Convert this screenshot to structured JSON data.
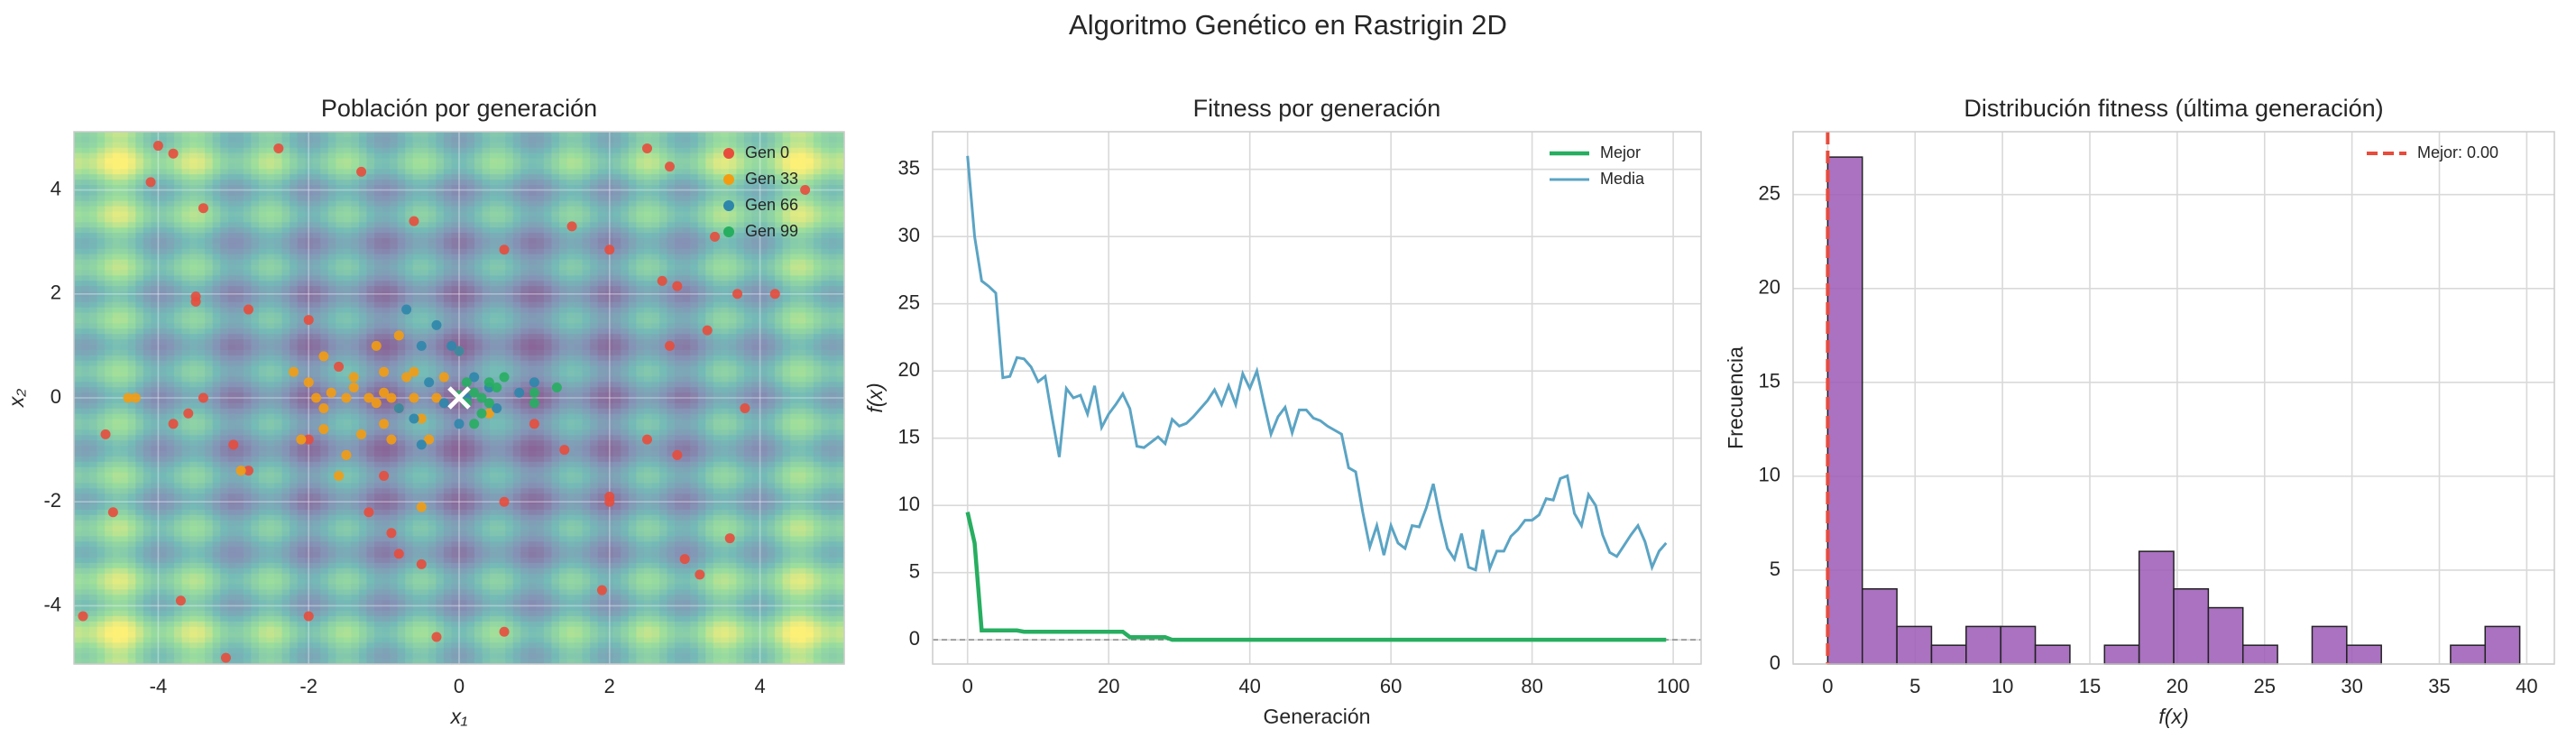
{
  "title": "Algoritmo Genético en Rastrigin 2D",
  "chart_data": [
    {
      "type": "scatter",
      "title": "Población por generación",
      "xlabel": "x₁",
      "ylabel": "x₂",
      "xlim": [
        -5.12,
        5.12
      ],
      "ylim": [
        -5.12,
        5.12
      ],
      "xticks": [
        -4,
        -2,
        0,
        2,
        4
      ],
      "yticks": [
        -4,
        -2,
        0,
        2,
        4
      ],
      "grid": true,
      "colormap": "viridis",
      "legend": "upper right",
      "series": [
        {
          "name": "Gen 0",
          "color": "#e74c3c",
          "x": [
            -4.0,
            -3.8,
            -2.4,
            -1.3,
            -4.1,
            -3.4,
            -0.6,
            2.5,
            2.8,
            1.5,
            0.6,
            3.4,
            3.7,
            4.2,
            2.7,
            2.9,
            2.0,
            -3.5,
            -3.5,
            -2.8,
            -2.0,
            -1.6,
            3.3,
            2.8,
            -3.6,
            -3.4,
            -4.7,
            -3.8,
            -3.0,
            -2.8,
            -2.0,
            -1.2,
            -1.0,
            0.6,
            1.4,
            2.0,
            2.0,
            2.5,
            2.9,
            3.0,
            3.2,
            3.6,
            -4.6,
            -3.7,
            -2.0,
            -0.9,
            -0.8,
            -0.5,
            1.9,
            0.6,
            -0.3,
            -3.1,
            -5.0,
            1.0,
            3.8,
            4.6
          ],
          "y": [
            4.85,
            4.7,
            4.8,
            4.35,
            4.15,
            3.65,
            3.4,
            4.8,
            4.45,
            3.3,
            2.85,
            3.1,
            2.0,
            2.0,
            2.25,
            2.15,
            2.85,
            1.95,
            1.85,
            1.7,
            1.5,
            0.6,
            1.3,
            1.0,
            -0.3,
            0.0,
            -0.7,
            -0.5,
            -0.9,
            -1.4,
            -0.8,
            -2.2,
            -1.5,
            -2.0,
            -1.0,
            -1.9,
            -2.0,
            -0.8,
            -1.1,
            -3.1,
            -3.4,
            -2.7,
            -2.2,
            -3.9,
            -4.2,
            -2.6,
            -3.0,
            -3.2,
            -3.7,
            -4.5,
            -4.6,
            -5.0,
            -4.2,
            -0.5,
            -0.2,
            4.0
          ]
        },
        {
          "name": "Gen 33",
          "color": "#f39c12",
          "x": [
            -4.4,
            -4.3,
            -2.0,
            -1.9,
            -1.8,
            -1.7,
            -1.5,
            -1.4,
            -1.2,
            -1.1,
            -1.0,
            -0.9,
            -0.8,
            -0.7,
            -0.6,
            -0.5,
            -1.0,
            -1.1,
            -0.8,
            -1.8,
            -1.0,
            -1.3,
            -1.5,
            -0.9,
            -0.4,
            -2.1,
            -1.8,
            0.4,
            0.0,
            -0.2,
            -0.6,
            -2.2,
            -1.6,
            -0.5,
            -1.4,
            -2.9,
            -0.3
          ],
          "y": [
            0.0,
            0.0,
            0.3,
            0.0,
            -0.2,
            0.1,
            0.0,
            0.2,
            0.0,
            -0.1,
            0.1,
            0.0,
            -0.2,
            0.4,
            0.0,
            -0.4,
            0.5,
            1.0,
            1.2,
            0.8,
            -0.5,
            -0.7,
            -1.1,
            -0.8,
            -0.8,
            -0.8,
            -0.6,
            -0.3,
            0.9,
            0.4,
            0.5,
            0.5,
            -1.5,
            -2.1,
            0.4,
            -1.4,
            0.0
          ]
        },
        {
          "name": "Gen 66",
          "color": "#2e86ab",
          "x": [
            -0.7,
            -0.3,
            -0.5,
            0.0,
            0.2,
            -0.4,
            0.4,
            -0.8,
            0.8,
            -0.6,
            0.0,
            0.1,
            -0.2,
            1.0,
            -0.1,
            0.5,
            -0.5
          ],
          "y": [
            1.7,
            1.4,
            1.0,
            0.9,
            0.4,
            0.3,
            0.2,
            -0.2,
            0.1,
            -0.4,
            -0.5,
            0.0,
            -0.1,
            0.3,
            1.0,
            -0.2,
            -0.9
          ]
        },
        {
          "name": "Gen 99",
          "color": "#27ae60",
          "x": [
            0.2,
            0.3,
            0.1,
            0.0,
            0.4,
            0.5,
            0.3,
            0.2,
            0.4,
            1.0,
            1.3,
            1.0,
            0.6,
            0.1
          ],
          "y": [
            0.1,
            0.0,
            -0.1,
            0.05,
            -0.1,
            0.2,
            -0.3,
            -0.5,
            0.3,
            0.1,
            0.2,
            -0.1,
            0.4,
            0.3
          ]
        }
      ],
      "marker": {
        "x": 0,
        "y": 0,
        "color": "#ffffff"
      }
    },
    {
      "type": "line",
      "title": "Fitness por generación",
      "xlabel": "Generación",
      "ylabel": "f(x)",
      "xlim": [
        -4.95,
        103.95
      ],
      "ylim": [
        -1.8,
        37.8
      ],
      "xticks": [
        0,
        20,
        40,
        60,
        80,
        100
      ],
      "yticks": [
        0,
        5,
        10,
        15,
        20,
        25,
        30,
        35
      ],
      "grid": true,
      "legend": "upper right",
      "hline": {
        "value": 0,
        "color": "#888888"
      },
      "x": [
        0,
        1,
        2,
        3,
        4,
        5,
        6,
        7,
        8,
        9,
        10,
        11,
        12,
        13,
        14,
        15,
        16,
        17,
        18,
        19,
        20,
        21,
        22,
        23,
        24,
        25,
        26,
        27,
        28,
        29,
        30,
        31,
        32,
        33,
        34,
        35,
        36,
        37,
        38,
        39,
        40,
        41,
        42,
        43,
        44,
        45,
        46,
        47,
        48,
        49,
        50,
        51,
        52,
        53,
        54,
        55,
        56,
        57,
        58,
        59,
        60,
        61,
        62,
        63,
        64,
        65,
        66,
        67,
        68,
        69,
        70,
        71,
        72,
        73,
        74,
        75,
        76,
        77,
        78,
        79,
        80,
        81,
        82,
        83,
        84,
        85,
        86,
        87,
        88,
        89,
        90,
        91,
        92,
        93,
        94,
        95,
        96,
        97,
        98,
        99
      ],
      "series": [
        {
          "name": "Mejor",
          "color": "#27ae60",
          "values": [
            9.5,
            7.2,
            0.7,
            0.7,
            0.7,
            0.7,
            0.7,
            0.7,
            0.6,
            0.6,
            0.6,
            0.6,
            0.6,
            0.6,
            0.6,
            0.6,
            0.6,
            0.6,
            0.6,
            0.6,
            0.6,
            0.6,
            0.6,
            0.2,
            0.2,
            0.2,
            0.2,
            0.2,
            0.2,
            0.0,
            0.0,
            0.0,
            0.0,
            0.0,
            0.0,
            0.0,
            0.0,
            0.0,
            0.0,
            0.0,
            0.0,
            0.0,
            0.0,
            0.0,
            0.0,
            0.0,
            0.0,
            0.0,
            0.0,
            0.0,
            0.0,
            0.0,
            0.0,
            0.0,
            0.0,
            0.0,
            0.0,
            0.0,
            0.0,
            0.0,
            0.0,
            0.0,
            0.0,
            0.0,
            0.0,
            0.0,
            0.0,
            0.0,
            0.0,
            0.0,
            0.0,
            0.0,
            0.0,
            0.0,
            0.0,
            0.0,
            0.0,
            0.0,
            0.0,
            0.0,
            0.0,
            0.0,
            0.0,
            0.0,
            0.0,
            0.0,
            0.0,
            0.0,
            0.0,
            0.0,
            0.0,
            0.0,
            0.0,
            0.0,
            0.0,
            0.0,
            0.0,
            0.0,
            0.0,
            0.0
          ]
        },
        {
          "name": "Media",
          "color": "#5ba4c4",
          "values": [
            36,
            30,
            26.7,
            26.3,
            25.8,
            19.5,
            19.6,
            21,
            20.9,
            20.3,
            19.2,
            19.6,
            16.5,
            13.6,
            18.7,
            18,
            18.2,
            16.8,
            18.9,
            15.8,
            16.8,
            17.5,
            18.3,
            17.2,
            14.4,
            14.3,
            14.7,
            15.1,
            14.6,
            16.4,
            15.9,
            16.1,
            16.6,
            17.2,
            17.8,
            18.6,
            17.5,
            18.9,
            17.5,
            19.8,
            18.7,
            20,
            17.6,
            15.3,
            16.6,
            17.3,
            15.4,
            17.1,
            17.1,
            16.5,
            16.3,
            15.9,
            15.6,
            15.3,
            12.8,
            12.5,
            9.5,
            6.9,
            8.5,
            6.3,
            8.5,
            7.2,
            6.8,
            8.5,
            8.4,
            9.8,
            11.6,
            9,
            6.8,
            6,
            7.9,
            5.4,
            5.2,
            8.2,
            5.3,
            6.6,
            6.6,
            7.7,
            8.2,
            8.9,
            8.9,
            9.3,
            10.5,
            10.4,
            12,
            12.2,
            9.4,
            8.5,
            10.8,
            10,
            7.8,
            6.5,
            6.2,
            7,
            7.8,
            8.5,
            7.3,
            5.4,
            6.6,
            7.2
          ]
        }
      ]
    },
    {
      "type": "histogram",
      "title": "Distribución fitness (última generación)",
      "xlabel": "f(x)",
      "ylabel": "Frecuencia",
      "xlim": [
        -1.98,
        41.58
      ],
      "ylim": [
        0,
        28.35
      ],
      "xticks": [
        0,
        5,
        10,
        15,
        20,
        25,
        30,
        35,
        40
      ],
      "yticks": [
        0,
        5,
        10,
        15,
        20,
        25
      ],
      "grid": true,
      "legend": "upper right",
      "color": "#9b59b6",
      "edgecolor": "#222222",
      "bins": [
        0,
        1.98,
        3.96,
        5.94,
        7.92,
        9.9,
        11.88,
        13.86,
        15.84,
        17.82,
        19.8,
        21.78,
        23.76,
        25.74,
        27.72,
        29.7,
        31.68,
        33.66,
        35.64,
        37.62,
        39.6
      ],
      "counts": [
        27,
        4,
        2,
        1,
        2,
        2,
        1,
        0,
        1,
        6,
        4,
        3,
        1,
        0,
        2,
        1,
        0,
        0,
        1,
        2
      ],
      "vline": {
        "name": "Mejor: 0.00",
        "value": 0,
        "color": "#e74c3c"
      }
    }
  ]
}
